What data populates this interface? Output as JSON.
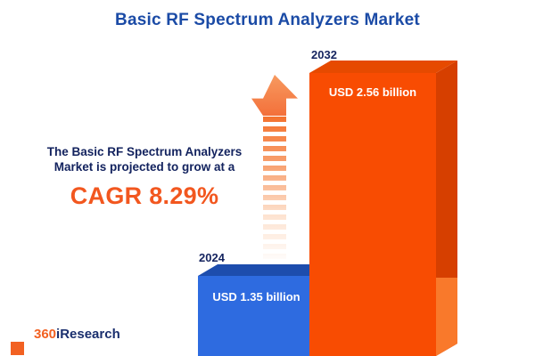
{
  "title": "Basic RF Spectrum Analyzers Market",
  "annotation": {
    "line1": "The Basic RF Spectrum Analyzers",
    "line2": "Market is projected to grow at a",
    "cagr": "CAGR 8.29%"
  },
  "bars": [
    {
      "year": "2024",
      "value_label": "USD 1.35 billion"
    },
    {
      "year": "2032",
      "value_label": "USD 2.56 billion"
    }
  ],
  "logo": {
    "prefix": "360",
    "suffix": "iResearch"
  },
  "colors": {
    "title_blue": "#1b4ba6",
    "navy_text": "#12225e",
    "accent_orange": "#f2571f",
    "bar_2024_front": "#2e6be0",
    "bar_2024_side": "#1d4dad",
    "bar_2032_front": "#f84c02",
    "bar_2032_side": "#d63f00",
    "bar_2032_side_lower": "#f9792b",
    "value_text": "#ffffff",
    "background": "#ffffff"
  },
  "chart_data": {
    "type": "bar",
    "categories": [
      "2024",
      "2032"
    ],
    "values": [
      1.35,
      2.56
    ],
    "unit": "USD billion",
    "value_labels": [
      "USD 1.35 billion",
      "USD 2.56 billion"
    ],
    "title": "Basic RF Spectrum Analyzers Market",
    "annotation": "The Basic RF Spectrum Analyzers Market is projected to grow at a CAGR 8.29%",
    "cagr_percent": 8.29,
    "legend": "none",
    "grid": false,
    "orientation": "vertical",
    "style": "3d-infographic"
  }
}
